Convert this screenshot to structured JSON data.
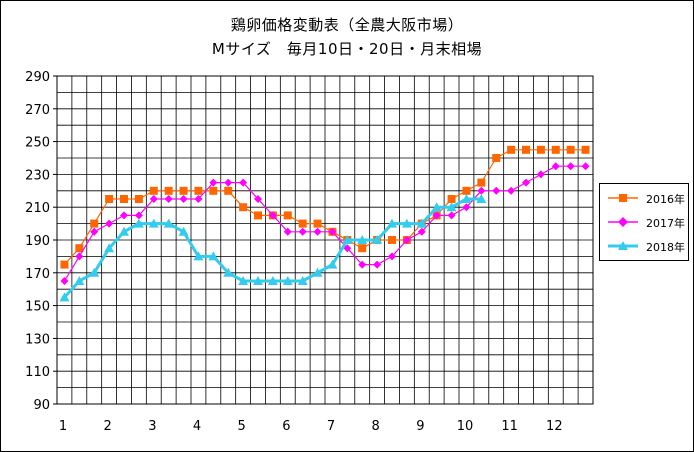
{
  "title": {
    "line1": "鶏卵価格変動表（全農大阪市場）",
    "line2": "Mサイズ　毎月10日・20日・月末相場"
  },
  "colors": {
    "s2016": "#ff6600",
    "s2017": "#ff00ff",
    "s2018": "#33ccee",
    "grid": "#000000"
  },
  "chart_data": {
    "type": "line",
    "ylim": [
      90,
      290
    ],
    "yticks": [
      90,
      110,
      130,
      150,
      170,
      190,
      210,
      230,
      250,
      270,
      290
    ],
    "xticks": [
      "1",
      "2",
      "3",
      "4",
      "5",
      "6",
      "7",
      "8",
      "9",
      "10",
      "11",
      "12"
    ],
    "grid": true,
    "legend": "right",
    "series": [
      {
        "name": "2016年",
        "marker": "square",
        "values": [
          175,
          185,
          200,
          215,
          215,
          215,
          220,
          220,
          220,
          220,
          220,
          220,
          210,
          205,
          205,
          205,
          200,
          200,
          195,
          190,
          185,
          190,
          190,
          190,
          200,
          205,
          215,
          220,
          225,
          240,
          245,
          245,
          245,
          245,
          245,
          245
        ]
      },
      {
        "name": "2017年",
        "marker": "diamond",
        "values": [
          165,
          180,
          195,
          200,
          205,
          205,
          215,
          215,
          215,
          215,
          225,
          225,
          225,
          215,
          205,
          195,
          195,
          195,
          195,
          185,
          175,
          175,
          180,
          190,
          195,
          205,
          205,
          210,
          220,
          220,
          220,
          225,
          230,
          235,
          235,
          235
        ]
      },
      {
        "name": "2018年",
        "marker": "triangle",
        "values": [
          155,
          165,
          170,
          185,
          195,
          200,
          200,
          200,
          195,
          180,
          180,
          170,
          165,
          165,
          165,
          165,
          165,
          170,
          175,
          190,
          190,
          190,
          200,
          200,
          200,
          210,
          210,
          215,
          215
        ]
      }
    ]
  }
}
